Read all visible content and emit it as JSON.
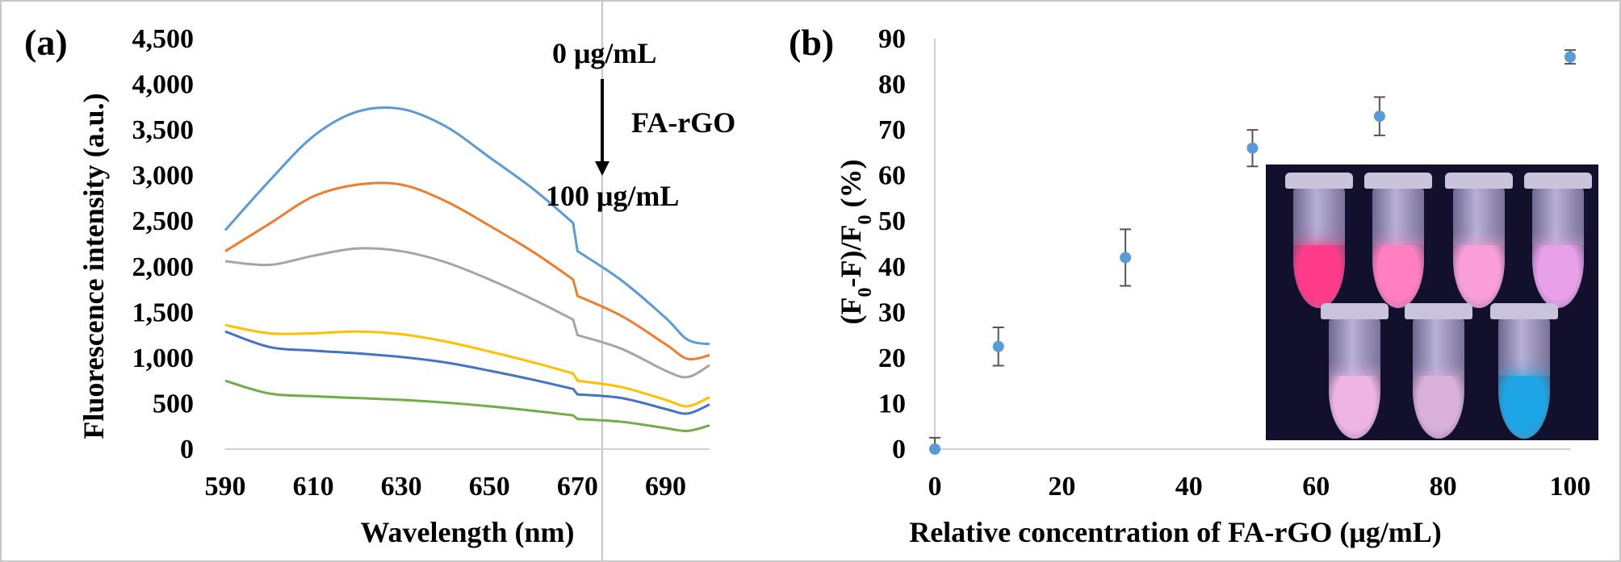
{
  "chart_data": [
    {
      "type": "line",
      "panel_label": "(a)",
      "xlabel": "Wavelength (nm)",
      "ylabel": "Fluorescence intensity (a.u.)",
      "xlim": [
        590,
        700
      ],
      "ylim": [
        0,
        4500
      ],
      "xticks": [
        "590",
        "610",
        "630",
        "650",
        "670",
        "690"
      ],
      "yticks": [
        "0",
        "500",
        "1,000",
        "1,500",
        "2,000",
        "2,500",
        "3,000",
        "3,500",
        "4,000",
        "4,500"
      ],
      "x": [
        590,
        600,
        610,
        620,
        630,
        640,
        650,
        660,
        669,
        670,
        680,
        690,
        695,
        700
      ],
      "series": [
        {
          "color": "#5b9bd5",
          "values": [
            2400,
            2940,
            3430,
            3700,
            3730,
            3540,
            3200,
            2850,
            2480,
            2170,
            1850,
            1440,
            1200,
            1150
          ]
        },
        {
          "color": "#ed7d31",
          "values": [
            2170,
            2470,
            2770,
            2900,
            2900,
            2720,
            2450,
            2160,
            1860,
            1680,
            1460,
            1150,
            990,
            1030
          ]
        },
        {
          "color": "#a5a5a5",
          "values": [
            2060,
            2020,
            2120,
            2200,
            2170,
            2050,
            1860,
            1640,
            1420,
            1250,
            1100,
            860,
            790,
            920
          ]
        },
        {
          "color": "#ffc000",
          "values": [
            1360,
            1270,
            1270,
            1290,
            1260,
            1180,
            1070,
            950,
            830,
            750,
            680,
            540,
            470,
            570
          ]
        },
        {
          "color": "#4472c4",
          "values": [
            1290,
            1120,
            1080,
            1050,
            1010,
            950,
            860,
            760,
            660,
            600,
            560,
            440,
            390,
            490
          ]
        },
        {
          "color": "#70ad47",
          "values": [
            750,
            610,
            580,
            560,
            540,
            510,
            470,
            420,
            370,
            330,
            300,
            230,
            200,
            260
          ]
        }
      ],
      "annotations": {
        "top": "0 μg/mL",
        "middle": "FA-rGO",
        "bottom": "100 μg/mL"
      }
    },
    {
      "type": "scatter",
      "panel_label": "(b)",
      "xlabel": "Relative concentration of FA-rGO (μg/mL)",
      "ylabel": "(F0-F)/F0 (%)",
      "xlim": [
        0,
        100
      ],
      "ylim": [
        0,
        90
      ],
      "xticks": [
        "0",
        "20",
        "40",
        "60",
        "80",
        "100"
      ],
      "yticks": [
        "0",
        "10",
        "20",
        "30",
        "40",
        "50",
        "60",
        "70",
        "80",
        "90"
      ],
      "points": [
        {
          "x": 0,
          "y": 0,
          "err": 2.5
        },
        {
          "x": 10,
          "y": 22.5,
          "err": 4.2
        },
        {
          "x": 30,
          "y": 42,
          "err": 6.2
        },
        {
          "x": 50,
          "y": 66,
          "err": 4
        },
        {
          "x": 70,
          "y": 73,
          "err": 4.2
        },
        {
          "x": 100,
          "y": 86,
          "err": 1.5
        }
      ],
      "marker_color": "#5b9bd5",
      "inset": {
        "tubes": [
          {
            "color": "#ff3b8a"
          },
          {
            "color": "#ff7fc0"
          },
          {
            "color": "#f79fd6"
          },
          {
            "color": "#e8a0e8"
          },
          {
            "color": "#eeb5e2"
          },
          {
            "color": "#d9b0d8"
          },
          {
            "color": "#1ea5e6"
          }
        ]
      }
    }
  ]
}
